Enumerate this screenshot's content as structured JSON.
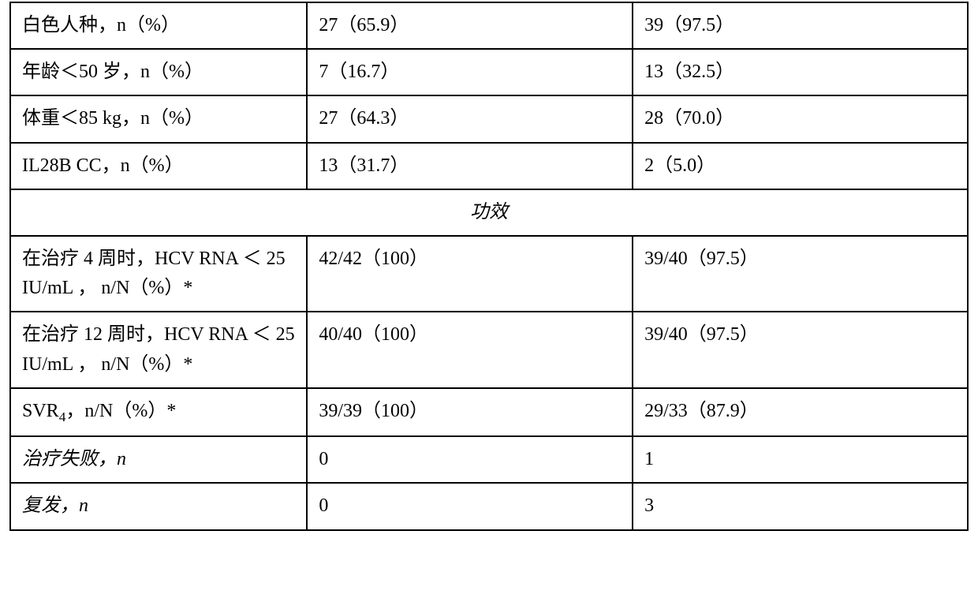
{
  "table": {
    "border_color": "#000000",
    "background_color": "#ffffff",
    "font_family": "SimSun",
    "base_font_size_pt": 18,
    "column_widths_pct": [
      31,
      34,
      35
    ],
    "section1_rows": [
      {
        "label": "白色人种，n（%）",
        "col2": "27（65.9）",
        "col3": "39（97.5）"
      },
      {
        "label": "年龄＜50 岁，n（%）",
        "col2": "7（16.7）",
        "col3": "13（32.5）"
      },
      {
        "label": "体重＜85 kg，n（%）",
        "col2": "27（64.3）",
        "col3": "28（70.0）"
      },
      {
        "label": "IL28B CC，n（%）",
        "col2": "13（31.7）",
        "col3": "2（5.0）"
      }
    ],
    "section_header": "功效",
    "section2_rows": [
      {
        "label": "在治疗 4 周时，HCV RNA ＜ 25 IU/mL ， n/N（%）*",
        "col2": "42/42（100）",
        "col3": "39/40（97.5）"
      },
      {
        "label": "在治疗 12 周时，HCV RNA ＜ 25 IU/mL ， n/N（%）*",
        "col2": "40/40（100）",
        "col3": "39/40（97.5）"
      }
    ],
    "svr_row": {
      "label_prefix": "SVR",
      "label_sub": "4",
      "label_suffix": "，n/N（%）*",
      "col2": "39/39（100）",
      "col3": "29/33（87.9）"
    },
    "tail_rows": [
      {
        "label": "治疗失败，n",
        "italic": true,
        "col2": "0",
        "col3": "1"
      },
      {
        "label": "复发，n",
        "italic": true,
        "col2": "0",
        "col3": "3"
      }
    ]
  }
}
